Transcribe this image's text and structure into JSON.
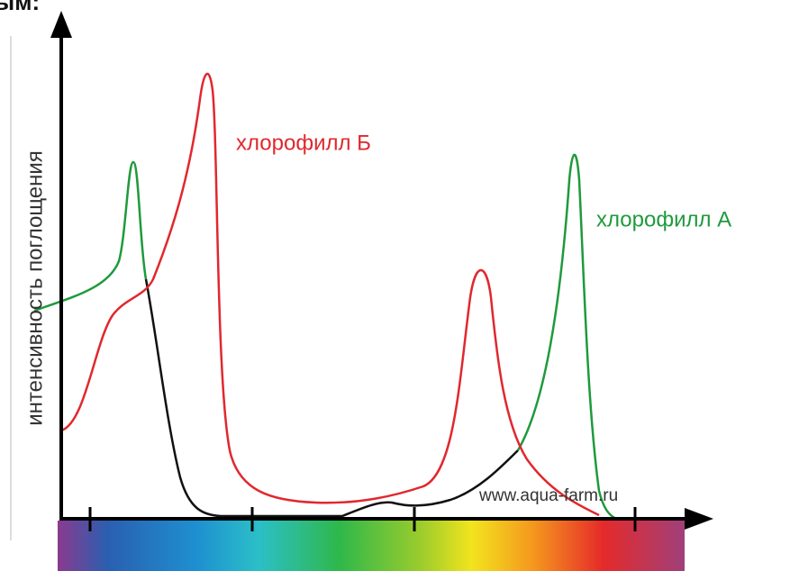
{
  "header_fragment": "ым:",
  "y_axis_label": "интенсивность поглощения",
  "curve_labels": {
    "chlorophyll_b": "хлорофилл Б",
    "chlorophyll_a": "хлорофилл А"
  },
  "watermark": "www.aqua-farm.ru"
}
